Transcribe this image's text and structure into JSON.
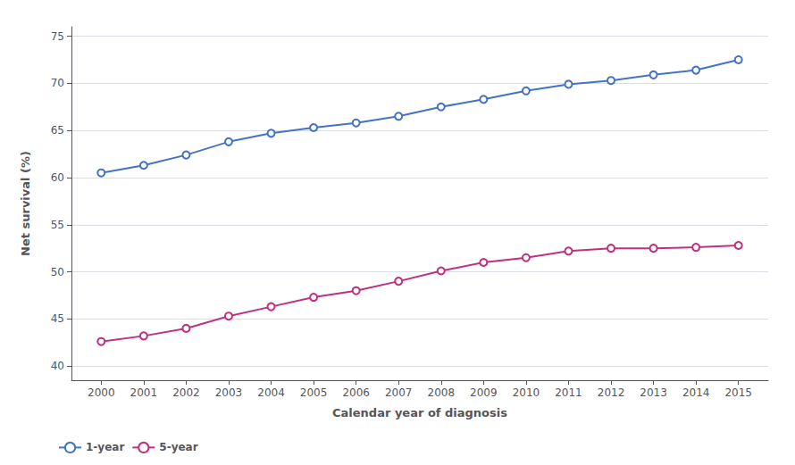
{
  "chart_data": {
    "type": "line",
    "x": [
      2000,
      2001,
      2002,
      2003,
      2004,
      2005,
      2006,
      2007,
      2008,
      2009,
      2010,
      2011,
      2012,
      2013,
      2014,
      2015
    ],
    "series": [
      {
        "name": "1-year",
        "color": "#4472C4",
        "marker": "circle",
        "values": [
          60.5,
          61.3,
          62.4,
          63.8,
          64.7,
          65.3,
          65.8,
          66.5,
          67.5,
          68.3,
          69.2,
          69.9,
          70.3,
          70.9,
          71.4,
          72.5
        ]
      },
      {
        "name": "5-year",
        "color": "#BF3080",
        "marker": "circle",
        "values": [
          42.6,
          43.2,
          44.0,
          45.3,
          46.3,
          47.3,
          48.0,
          49.0,
          50.1,
          51.0,
          51.5,
          52.2,
          52.5,
          52.5,
          52.6,
          52.8
        ]
      }
    ],
    "xlabel": "Calendar year of diagnosis",
    "ylabel": "Net survival (%)",
    "xlim": [
      1999.3,
      2015.7
    ],
    "xticks": [
      2000,
      2001,
      2002,
      2003,
      2004,
      2005,
      2006,
      2007,
      2008,
      2009,
      2010,
      2011,
      2012,
      2013,
      2014,
      2015
    ],
    "ylim": [
      38.5,
      76
    ],
    "yticks": [
      40,
      45,
      50,
      55,
      60,
      65,
      70,
      75
    ],
    "grid": true,
    "legend": "lower left"
  }
}
